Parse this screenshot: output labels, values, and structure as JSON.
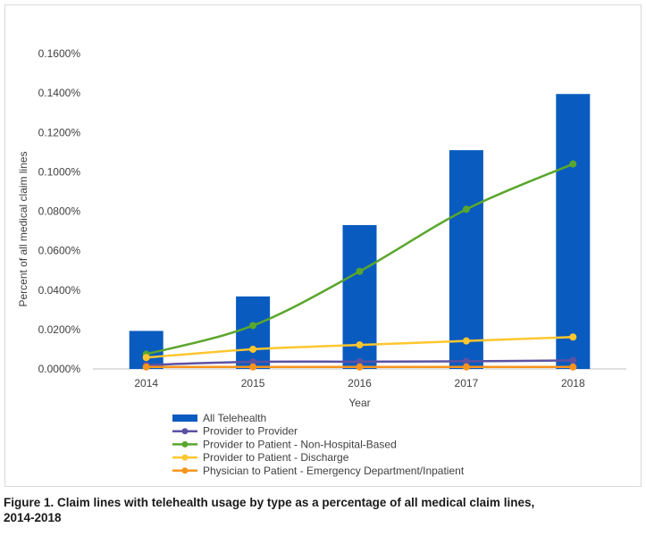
{
  "chart_data": {
    "type": "bar+line",
    "categories": [
      "2014",
      "2015",
      "2016",
      "2017",
      "2018"
    ],
    "bar_series": {
      "name": "All Telehealth",
      "color": "#0a5bbf",
      "values": [
        0.0193,
        0.0368,
        0.073,
        0.111,
        0.1395
      ]
    },
    "line_series": [
      {
        "name": "Provider to Provider",
        "color": "#5b52a3",
        "values": [
          0.002,
          0.0036,
          0.0037,
          0.0039,
          0.0043
        ]
      },
      {
        "name": "Provider to Patient - Non-Hospital-Based",
        "color": "#5aa62d",
        "values": [
          0.0075,
          0.022,
          0.0495,
          0.081,
          0.104
        ]
      },
      {
        "name": "Provider to Patient - Discharge",
        "color": "#ffc62e",
        "values": [
          0.0058,
          0.01,
          0.0122,
          0.0142,
          0.0162
        ]
      },
      {
        "name": "Physician to Patient - Emergency Department/Inpatient",
        "color": "#f7941d",
        "values": [
          0.001,
          0.001,
          0.001,
          0.001,
          0.001
        ]
      }
    ],
    "y_ticks": [
      "0.0000%",
      "0.0200%",
      "0.0400%",
      "0.0600%",
      "0.0800%",
      "0.1000%",
      "0.1200%",
      "0.1400%",
      "0.1600%"
    ],
    "ylim": [
      0,
      0.16
    ],
    "xlabel": "Year",
    "ylabel": "Percent of all medical claim lines",
    "legend_position": "bottom",
    "grid": false
  },
  "caption": {
    "line1": "Figure 1. Claim lines with telehealth usage by type as a percentage of all medical claim lines,",
    "line2": "2014-2018"
  }
}
